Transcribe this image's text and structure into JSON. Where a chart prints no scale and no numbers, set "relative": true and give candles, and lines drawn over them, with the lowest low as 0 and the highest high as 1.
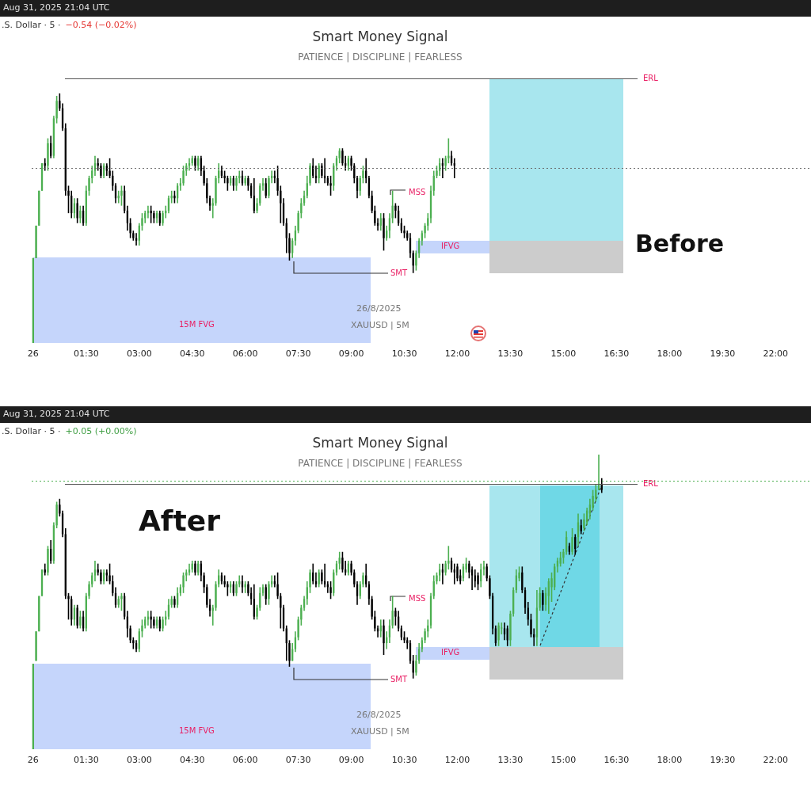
{
  "chart_data": [
    {
      "type": "candlestick",
      "title": "Smart Money Signal",
      "subtitle": "PATIENCE | DISCIPLINE | FEARLESS",
      "relative": true,
      "annotations": [
        "Aug 31, 2025 21:04 UTC",
        ".S. Dollar · 5 ·",
        "−0.54 (−0.02%)",
        "MSS",
        "IFVG",
        "SMT",
        "15M FVG",
        "26/8/2025",
        "XAUUSD | 5M",
        "Before"
      ],
      "ref_lines": [
        {
          "axis": "y",
          "value": 1.06,
          "label": "ERL",
          "color": "#555555"
        },
        {
          "axis": "y",
          "value": 0.7,
          "line_style": "dotted",
          "color": "#666666"
        }
      ],
      "categories": [
        "26",
        null,
        null,
        null,
        null,
        null,
        null,
        null,
        null,
        null,
        null,
        null,
        null,
        null,
        null,
        null,
        null,
        null,
        "01:30",
        null,
        null,
        null,
        null,
        null,
        null,
        null,
        null,
        null,
        null,
        null,
        null,
        null,
        null,
        null,
        null,
        null,
        "03:00",
        null,
        null,
        null,
        null,
        null,
        null,
        null,
        null,
        null,
        null,
        null,
        null,
        null,
        null,
        null,
        null,
        null,
        "04:30",
        null,
        null,
        null,
        null,
        null,
        null,
        null,
        null,
        null,
        null,
        null,
        null,
        null,
        null,
        null,
        null,
        null,
        "06:00",
        null,
        null,
        null,
        null,
        null,
        null,
        null,
        null,
        null,
        null,
        null,
        null,
        null,
        null,
        null,
        null,
        null,
        "07:30",
        null,
        null,
        null,
        null,
        null,
        null,
        null,
        null,
        null,
        null,
        null,
        null,
        null,
        null,
        null,
        null,
        null,
        "09:00",
        null,
        null,
        null,
        null,
        null,
        null,
        null,
        null,
        null,
        null,
        null,
        null,
        null,
        null,
        null,
        null,
        null,
        "10:30",
        null,
        null,
        null,
        null,
        null,
        null,
        null,
        null,
        null,
        null,
        null,
        null,
        null,
        null,
        null,
        null,
        null,
        "12:00",
        null,
        null,
        null,
        null,
        null,
        null,
        null,
        null,
        null,
        null,
        null,
        null,
        null,
        null,
        null,
        null,
        null,
        "13:30",
        null,
        null,
        null,
        null,
        null,
        null,
        null,
        null,
        null,
        null,
        null,
        null,
        null,
        null,
        null,
        null,
        null,
        "15:00",
        null,
        null,
        null,
        null,
        null,
        null,
        null,
        null,
        null,
        null,
        null,
        null,
        null,
        null,
        null,
        null,
        null,
        "16:30",
        null,
        null,
        null,
        null,
        null,
        null,
        null,
        null,
        null,
        null,
        null,
        null,
        null,
        null,
        null,
        null,
        null,
        "18:00",
        null,
        null,
        null,
        null,
        null,
        null,
        null,
        null,
        null,
        null,
        null,
        null,
        null,
        null,
        null,
        null,
        null,
        "19:30",
        null,
        null,
        null,
        null,
        null,
        null,
        null,
        null,
        null,
        null,
        null,
        null,
        null,
        null,
        null,
        null,
        null,
        "22:00",
        null,
        null,
        null,
        null,
        null,
        null,
        null,
        null,
        null,
        null,
        null
      ],
      "ohlc": [
        [
          0,
          0.34,
          0,
          0.34
        ],
        [
          0.34,
          0.47,
          0.34,
          0.47
        ],
        [
          0.47,
          0.61,
          0.47,
          0.61
        ],
        [
          0.61,
          0.72,
          0.61,
          0.72
        ],
        [
          0.72,
          0.74,
          0.69,
          0.71
        ],
        [
          0.71,
          0.82,
          0.69,
          0.8
        ],
        [
          0.8,
          0.83,
          0.74,
          0.75
        ],
        [
          0.75,
          0.91,
          0.74,
          0.9
        ],
        [
          0.9,
          0.99,
          0.88,
          0.97
        ],
        [
          0.97,
          1,
          0.93,
          0.94
        ],
        [
          0.94,
          0.96,
          0.85,
          0.86
        ],
        [
          0.86,
          0.88,
          0.59,
          0.61
        ],
        [
          0.61,
          0.63,
          0.52,
          0.59
        ],
        [
          0.59,
          0.61,
          0.5,
          0.52
        ],
        [
          0.52,
          0.58,
          0.5,
          0.56
        ],
        [
          0.56,
          0.58,
          0.48,
          0.5
        ],
        [
          0.5,
          0.55,
          0.48,
          0.53
        ],
        [
          0.53,
          0.55,
          0.47,
          0.48
        ],
        [
          0.48,
          0.63,
          0.47,
          0.61
        ],
        [
          0.61,
          0.67,
          0.59,
          0.66
        ],
        [
          0.66,
          0.71,
          0.64,
          0.69
        ],
        [
          0.69,
          0.75,
          0.67,
          0.72
        ],
        [
          0.72,
          0.74,
          0.69,
          0.71
        ],
        [
          0.71,
          0.72,
          0.66,
          0.67
        ],
        [
          0.67,
          0.72,
          0.66,
          0.71
        ],
        [
          0.71,
          0.72,
          0.67,
          0.69
        ],
        [
          0.69,
          0.74,
          0.66,
          0.67
        ],
        [
          0.67,
          0.69,
          0.61,
          0.63
        ],
        [
          0.63,
          0.64,
          0.56,
          0.58
        ],
        [
          0.58,
          0.61,
          0.56,
          0.59
        ],
        [
          0.59,
          0.63,
          0.55,
          0.61
        ],
        [
          0.61,
          0.63,
          0.52,
          0.53
        ],
        [
          0.53,
          0.55,
          0.45,
          0.48
        ],
        [
          0.48,
          0.5,
          0.42,
          0.44
        ],
        [
          0.44,
          0.45,
          0.41,
          0.42
        ],
        [
          0.42,
          0.44,
          0.39,
          0.41
        ],
        [
          0.41,
          0.48,
          0.39,
          0.47
        ],
        [
          0.47,
          0.52,
          0.45,
          0.5
        ],
        [
          0.5,
          0.53,
          0.48,
          0.52
        ],
        [
          0.52,
          0.55,
          0.5,
          0.53
        ],
        [
          0.53,
          0.55,
          0.48,
          0.52
        ],
        [
          0.52,
          0.53,
          0.48,
          0.5
        ],
        [
          0.5,
          0.53,
          0.48,
          0.52
        ],
        [
          0.52,
          0.53,
          0.47,
          0.48
        ],
        [
          0.48,
          0.53,
          0.47,
          0.52
        ],
        [
          0.52,
          0.55,
          0.5,
          0.53
        ],
        [
          0.53,
          0.59,
          0.52,
          0.58
        ],
        [
          0.58,
          0.61,
          0.56,
          0.59
        ],
        [
          0.59,
          0.61,
          0.56,
          0.58
        ],
        [
          0.58,
          0.64,
          0.56,
          0.63
        ],
        [
          0.63,
          0.66,
          0.61,
          0.64
        ],
        [
          0.64,
          0.71,
          0.63,
          0.69
        ],
        [
          0.69,
          0.72,
          0.67,
          0.71
        ],
        [
          0.71,
          0.74,
          0.69,
          0.72
        ],
        [
          0.72,
          0.75,
          0.71,
          0.74
        ],
        [
          0.74,
          0.75,
          0.69,
          0.71
        ],
        [
          0.71,
          0.75,
          0.69,
          0.74
        ],
        [
          0.74,
          0.75,
          0.67,
          0.69
        ],
        [
          0.69,
          0.71,
          0.63,
          0.64
        ],
        [
          0.64,
          0.66,
          0.56,
          0.58
        ],
        [
          0.58,
          0.59,
          0.53,
          0.55
        ],
        [
          0.55,
          0.58,
          0.5,
          0.56
        ],
        [
          0.56,
          0.67,
          0.55,
          0.66
        ],
        [
          0.66,
          0.72,
          0.64,
          0.69
        ],
        [
          0.69,
          0.71,
          0.66,
          0.67
        ],
        [
          0.67,
          0.69,
          0.64,
          0.66
        ],
        [
          0.66,
          0.67,
          0.61,
          0.64
        ],
        [
          0.64,
          0.67,
          0.63,
          0.66
        ],
        [
          0.66,
          0.67,
          0.61,
          0.63
        ],
        [
          0.63,
          0.67,
          0.61,
          0.66
        ],
        [
          0.66,
          0.69,
          0.64,
          0.67
        ],
        [
          0.67,
          0.69,
          0.63,
          0.64
        ],
        [
          0.64,
          0.67,
          0.63,
          0.66
        ],
        [
          0.66,
          0.67,
          0.61,
          0.63
        ],
        [
          0.63,
          0.64,
          0.58,
          0.59
        ],
        [
          0.59,
          0.66,
          0.52,
          0.53
        ],
        [
          0.53,
          0.58,
          0.52,
          0.56
        ],
        [
          0.56,
          0.64,
          0.55,
          0.63
        ],
        [
          0.63,
          0.66,
          0.61,
          0.64
        ],
        [
          0.64,
          0.66,
          0.58,
          0.59
        ],
        [
          0.59,
          0.67,
          0.58,
          0.66
        ],
        [
          0.66,
          0.69,
          0.64,
          0.67
        ],
        [
          0.67,
          0.69,
          0.64,
          0.66
        ],
        [
          0.66,
          0.71,
          0.59,
          0.61
        ],
        [
          0.61,
          0.63,
          0.48,
          0.56
        ],
        [
          0.56,
          0.58,
          0.47,
          0.48
        ],
        [
          0.48,
          0.5,
          0.36,
          0.42
        ],
        [
          0.42,
          0.44,
          0.33,
          0.36
        ],
        [
          0.36,
          0.42,
          0.34,
          0.41
        ],
        [
          0.41,
          0.47,
          0.39,
          0.45
        ],
        [
          0.45,
          0.53,
          0.44,
          0.52
        ],
        [
          0.52,
          0.58,
          0.5,
          0.56
        ],
        [
          0.56,
          0.61,
          0.55,
          0.59
        ],
        [
          0.59,
          0.67,
          0.58,
          0.64
        ],
        [
          0.64,
          0.72,
          0.63,
          0.71
        ],
        [
          0.71,
          0.74,
          0.66,
          0.67
        ],
        [
          0.67,
          0.71,
          0.64,
          0.66
        ],
        [
          0.66,
          0.72,
          0.64,
          0.71
        ],
        [
          0.71,
          0.72,
          0.66,
          0.67
        ],
        [
          0.67,
          0.74,
          0.64,
          0.66
        ],
        [
          0.66,
          0.67,
          0.63,
          0.64
        ],
        [
          0.64,
          0.67,
          0.59,
          0.63
        ],
        [
          0.63,
          0.72,
          0.61,
          0.71
        ],
        [
          0.71,
          0.75,
          0.69,
          0.74
        ],
        [
          0.74,
          0.78,
          0.72,
          0.77
        ],
        [
          0.77,
          0.78,
          0.71,
          0.72
        ],
        [
          0.72,
          0.75,
          0.69,
          0.71
        ],
        [
          0.71,
          0.75,
          0.69,
          0.74
        ],
        [
          0.74,
          0.75,
          0.69,
          0.71
        ],
        [
          0.71,
          0.72,
          0.64,
          0.66
        ],
        [
          0.66,
          0.67,
          0.58,
          0.61
        ],
        [
          0.61,
          0.67,
          0.59,
          0.66
        ],
        [
          0.66,
          0.71,
          0.64,
          0.69
        ],
        [
          0.69,
          0.74,
          0.64,
          0.66
        ],
        [
          0.66,
          0.67,
          0.58,
          0.59
        ],
        [
          0.59,
          0.61,
          0.52,
          0.53
        ],
        [
          0.53,
          0.55,
          0.47,
          0.48
        ],
        [
          0.48,
          0.5,
          0.45,
          0.47
        ],
        [
          0.47,
          0.52,
          0.45,
          0.5
        ],
        [
          0.5,
          0.52,
          0.37,
          0.42
        ],
        [
          0.42,
          0.47,
          0.41,
          0.45
        ],
        [
          0.45,
          0.52,
          0.42,
          0.5
        ],
        [
          0.5,
          0.61,
          0.48,
          0.55
        ],
        [
          0.55,
          0.56,
          0.5,
          0.53
        ],
        [
          0.53,
          0.55,
          0.47,
          0.48
        ],
        [
          0.48,
          0.5,
          0.44,
          0.45
        ],
        [
          0.45,
          0.47,
          0.42,
          0.44
        ],
        [
          0.44,
          0.45,
          0.41,
          0.42
        ],
        [
          0.42,
          0.44,
          0.34,
          0.36
        ],
        [
          0.36,
          0.37,
          0.28,
          0.31
        ],
        [
          0.31,
          0.37,
          0.29,
          0.36
        ],
        [
          0.36,
          0.42,
          0.34,
          0.41
        ],
        [
          0.41,
          0.45,
          0.39,
          0.44
        ],
        [
          0.44,
          0.48,
          0.42,
          0.47
        ],
        [
          0.47,
          0.52,
          0.45,
          0.5
        ],
        [
          0.5,
          0.63,
          0.48,
          0.61
        ],
        [
          0.61,
          0.69,
          0.59,
          0.67
        ],
        [
          0.67,
          0.71,
          0.66,
          0.69
        ],
        [
          0.69,
          0.74,
          0.67,
          0.72
        ],
        [
          0.72,
          0.74,
          0.66,
          0.71
        ],
        [
          0.71,
          0.75,
          0.69,
          0.74
        ],
        [
          0.74,
          0.82,
          0.72,
          0.75
        ],
        [
          0.75,
          0.77,
          0.71,
          0.72
        ],
        [
          0.72,
          0.74,
          0.66,
          0.71
        ],
        null,
        null,
        null,
        null,
        null,
        null,
        null,
        null,
        null,
        null,
        null,
        null,
        null,
        null,
        null,
        null,
        null,
        null,
        null,
        null,
        null,
        null,
        null,
        null,
        null,
        null,
        null,
        null,
        null,
        null,
        null,
        null,
        null,
        null,
        null,
        null,
        null,
        null,
        null,
        null,
        null,
        null,
        null,
        null,
        null,
        null,
        null,
        null,
        null,
        null,
        null,
        null,
        null,
        null,
        null,
        null,
        null,
        null,
        null,
        null,
        null,
        null,
        null,
        null,
        null,
        null,
        null,
        null,
        null,
        null,
        null,
        null,
        null,
        null,
        null,
        null,
        null,
        null,
        null,
        null,
        null,
        null,
        null,
        null,
        null,
        null,
        null,
        null,
        null,
        null,
        null,
        null,
        null,
        null,
        null,
        null,
        null,
        null,
        null,
        null,
        null,
        null,
        null,
        null,
        null,
        null,
        null,
        null,
        null,
        null,
        null,
        null,
        null,
        null,
        null,
        null,
        null,
        null,
        null,
        null
      ]
    },
    {
      "type": "candlestick",
      "title": "Smart Money Signal",
      "subtitle": "PATIENCE | DISCIPLINE | FEARLESS",
      "relative": true,
      "annotations": [
        "Aug 31, 2025 21:04 UTC",
        ".S. Dollar · 5 ·",
        "+0.05 (+0.00%)",
        "MSS",
        "IFVG",
        "SMT",
        "15M FVG",
        "26/8/2025",
        "XAUUSD | 5M",
        "After"
      ],
      "ref_lines": [
        {
          "axis": "y",
          "value": 0.9,
          "label": "ERL",
          "color": "#555555"
        },
        {
          "axis": "y",
          "value": 0.91,
          "line_style": "dotted",
          "color": "#4caf50"
        }
      ],
      "categories": [
        "26",
        null,
        null,
        null,
        null,
        null,
        null,
        null,
        null,
        null,
        null,
        null,
        null,
        null,
        null,
        null,
        null,
        null,
        "01:30",
        null,
        null,
        null,
        null,
        null,
        null,
        null,
        null,
        null,
        null,
        null,
        null,
        null,
        null,
        null,
        null,
        null,
        "03:00",
        null,
        null,
        null,
        null,
        null,
        null,
        null,
        null,
        null,
        null,
        null,
        null,
        null,
        null,
        null,
        null,
        null,
        "04:30",
        null,
        null,
        null,
        null,
        null,
        null,
        null,
        null,
        null,
        null,
        null,
        null,
        null,
        null,
        null,
        null,
        null,
        "06:00",
        null,
        null,
        null,
        null,
        null,
        null,
        null,
        null,
        null,
        null,
        null,
        null,
        null,
        null,
        null,
        null,
        null,
        "07:30",
        null,
        null,
        null,
        null,
        null,
        null,
        null,
        null,
        null,
        null,
        null,
        null,
        null,
        null,
        null,
        null,
        null,
        "09:00",
        null,
        null,
        null,
        null,
        null,
        null,
        null,
        null,
        null,
        null,
        null,
        null,
        null,
        null,
        null,
        null,
        null,
        "10:30",
        null,
        null,
        null,
        null,
        null,
        null,
        null,
        null,
        null,
        null,
        null,
        null,
        null,
        null,
        null,
        null,
        null,
        "12:00",
        null,
        null,
        null,
        null,
        null,
        null,
        null,
        null,
        null,
        null,
        null,
        null,
        null,
        null,
        null,
        null,
        null,
        "13:30",
        null,
        null,
        null,
        null,
        null,
        null,
        null,
        null,
        null,
        null,
        null,
        null,
        null,
        null,
        null,
        null,
        null,
        "15:00",
        null,
        null,
        null,
        null,
        null,
        null,
        null,
        null,
        null,
        null,
        null,
        null,
        null,
        null,
        null,
        null,
        null,
        "16:30",
        null,
        null,
        null,
        null,
        null,
        null,
        null,
        null,
        null,
        null,
        null,
        null,
        null,
        null,
        null,
        null,
        null,
        "18:00",
        null,
        null,
        null,
        null,
        null,
        null,
        null,
        null,
        null,
        null,
        null,
        null,
        null,
        null,
        null,
        null,
        null,
        "19:30",
        null,
        null,
        null,
        null,
        null,
        null,
        null,
        null,
        null,
        null,
        null,
        null,
        null,
        null,
        null,
        null,
        null,
        "22:00",
        null,
        null,
        null,
        null,
        null,
        null,
        null,
        null,
        null,
        null,
        null
      ],
      "ohlc": [
        [
          0,
          0.29,
          0,
          0.29
        ],
        [
          0.3,
          0.4,
          0.3,
          0.4
        ],
        [
          0.4,
          0.52,
          0.4,
          0.52
        ],
        [
          0.52,
          0.61,
          0.52,
          0.61
        ],
        [
          0.61,
          0.63,
          0.59,
          0.6
        ],
        [
          0.6,
          0.69,
          0.59,
          0.68
        ],
        [
          0.68,
          0.71,
          0.63,
          0.64
        ],
        [
          0.64,
          0.77,
          0.63,
          0.76
        ],
        [
          0.76,
          0.84,
          0.75,
          0.83
        ],
        [
          0.83,
          0.85,
          0.79,
          0.8
        ],
        [
          0.8,
          0.81,
          0.72,
          0.73
        ],
        [
          0.73,
          0.75,
          0.51,
          0.52
        ],
        [
          0.52,
          0.53,
          0.44,
          0.51
        ],
        [
          0.51,
          0.52,
          0.42,
          0.44
        ],
        [
          0.44,
          0.49,
          0.42,
          0.48
        ],
        [
          0.48,
          0.49,
          0.41,
          0.42
        ],
        [
          0.42,
          0.47,
          0.41,
          0.45
        ],
        [
          0.45,
          0.47,
          0.4,
          0.41
        ],
        [
          0.41,
          0.53,
          0.4,
          0.52
        ],
        [
          0.52,
          0.57,
          0.51,
          0.56
        ],
        [
          0.56,
          0.6,
          0.55,
          0.59
        ],
        [
          0.59,
          0.64,
          0.57,
          0.61
        ],
        [
          0.61,
          0.63,
          0.59,
          0.6
        ],
        [
          0.6,
          0.61,
          0.56,
          0.57
        ],
        [
          0.57,
          0.61,
          0.56,
          0.6
        ],
        [
          0.6,
          0.61,
          0.57,
          0.59
        ],
        [
          0.59,
          0.63,
          0.56,
          0.57
        ],
        [
          0.57,
          0.59,
          0.52,
          0.53
        ],
        [
          0.53,
          0.55,
          0.48,
          0.49
        ],
        [
          0.49,
          0.52,
          0.48,
          0.51
        ],
        [
          0.51,
          0.53,
          0.47,
          0.52
        ],
        [
          0.52,
          0.53,
          0.44,
          0.45
        ],
        [
          0.45,
          0.47,
          0.38,
          0.41
        ],
        [
          0.41,
          0.42,
          0.36,
          0.37
        ],
        [
          0.37,
          0.38,
          0.34,
          0.36
        ],
        [
          0.36,
          0.37,
          0.33,
          0.34
        ],
        [
          0.34,
          0.41,
          0.33,
          0.4
        ],
        [
          0.4,
          0.44,
          0.38,
          0.42
        ],
        [
          0.42,
          0.45,
          0.41,
          0.44
        ],
        [
          0.44,
          0.47,
          0.42,
          0.45
        ],
        [
          0.45,
          0.47,
          0.41,
          0.44
        ],
        [
          0.44,
          0.45,
          0.41,
          0.42
        ],
        [
          0.42,
          0.45,
          0.41,
          0.44
        ],
        [
          0.44,
          0.45,
          0.4,
          0.41
        ],
        [
          0.41,
          0.45,
          0.4,
          0.44
        ],
        [
          0.44,
          0.47,
          0.42,
          0.45
        ],
        [
          0.45,
          0.51,
          0.44,
          0.49
        ],
        [
          0.49,
          0.52,
          0.48,
          0.51
        ],
        [
          0.51,
          0.52,
          0.48,
          0.49
        ],
        [
          0.49,
          0.55,
          0.48,
          0.53
        ],
        [
          0.53,
          0.56,
          0.52,
          0.55
        ],
        [
          0.55,
          0.6,
          0.53,
          0.59
        ],
        [
          0.59,
          0.61,
          0.57,
          0.6
        ],
        [
          0.6,
          0.63,
          0.59,
          0.61
        ],
        [
          0.61,
          0.64,
          0.6,
          0.63
        ],
        [
          0.63,
          0.64,
          0.59,
          0.6
        ],
        [
          0.6,
          0.64,
          0.59,
          0.63
        ],
        [
          0.63,
          0.64,
          0.57,
          0.59
        ],
        [
          0.59,
          0.6,
          0.53,
          0.55
        ],
        [
          0.55,
          0.56,
          0.48,
          0.49
        ],
        [
          0.49,
          0.51,
          0.45,
          0.47
        ],
        [
          0.47,
          0.49,
          0.42,
          0.48
        ],
        [
          0.48,
          0.57,
          0.47,
          0.56
        ],
        [
          0.56,
          0.61,
          0.55,
          0.59
        ],
        [
          0.59,
          0.6,
          0.56,
          0.57
        ],
        [
          0.57,
          0.59,
          0.55,
          0.56
        ],
        [
          0.56,
          0.57,
          0.52,
          0.55
        ],
        [
          0.55,
          0.57,
          0.53,
          0.56
        ],
        [
          0.56,
          0.57,
          0.52,
          0.53
        ],
        [
          0.53,
          0.57,
          0.52,
          0.56
        ],
        [
          0.56,
          0.59,
          0.55,
          0.57
        ],
        [
          0.57,
          0.59,
          0.53,
          0.55
        ],
        [
          0.55,
          0.57,
          0.53,
          0.56
        ],
        [
          0.56,
          0.57,
          0.52,
          0.53
        ],
        [
          0.53,
          0.55,
          0.49,
          0.51
        ],
        [
          0.51,
          0.56,
          0.44,
          0.45
        ],
        [
          0.45,
          0.49,
          0.44,
          0.48
        ],
        [
          0.48,
          0.55,
          0.47,
          0.53
        ],
        [
          0.53,
          0.56,
          0.52,
          0.55
        ],
        [
          0.55,
          0.56,
          0.49,
          0.51
        ],
        [
          0.51,
          0.57,
          0.49,
          0.56
        ],
        [
          0.56,
          0.59,
          0.55,
          0.57
        ],
        [
          0.57,
          0.59,
          0.55,
          0.56
        ],
        [
          0.56,
          0.6,
          0.51,
          0.52
        ],
        [
          0.52,
          0.53,
          0.41,
          0.48
        ],
        [
          0.48,
          0.49,
          0.4,
          0.41
        ],
        [
          0.41,
          0.42,
          0.3,
          0.36
        ],
        [
          0.36,
          0.37,
          0.28,
          0.3
        ],
        [
          0.3,
          0.36,
          0.3,
          0.34
        ],
        [
          0.34,
          0.4,
          0.33,
          0.38
        ],
        [
          0.38,
          0.45,
          0.37,
          0.44
        ],
        [
          0.44,
          0.49,
          0.42,
          0.48
        ],
        [
          0.48,
          0.52,
          0.47,
          0.51
        ],
        [
          0.51,
          0.57,
          0.49,
          0.55
        ],
        [
          0.55,
          0.61,
          0.53,
          0.6
        ],
        [
          0.6,
          0.63,
          0.56,
          0.57
        ],
        [
          0.57,
          0.6,
          0.55,
          0.56
        ],
        [
          0.56,
          0.61,
          0.55,
          0.6
        ],
        [
          0.6,
          0.61,
          0.56,
          0.57
        ],
        [
          0.57,
          0.63,
          0.55,
          0.56
        ],
        [
          0.56,
          0.57,
          0.53,
          0.55
        ],
        [
          0.55,
          0.57,
          0.51,
          0.53
        ],
        [
          0.53,
          0.61,
          0.52,
          0.6
        ],
        [
          0.6,
          0.64,
          0.59,
          0.63
        ],
        [
          0.63,
          0.67,
          0.61,
          0.65
        ],
        [
          0.65,
          0.67,
          0.6,
          0.61
        ],
        [
          0.61,
          0.64,
          0.59,
          0.6
        ],
        [
          0.6,
          0.64,
          0.59,
          0.63
        ],
        [
          0.63,
          0.64,
          0.59,
          0.6
        ],
        [
          0.6,
          0.61,
          0.55,
          0.56
        ],
        [
          0.56,
          0.57,
          0.49,
          0.52
        ],
        [
          0.52,
          0.57,
          0.51,
          0.56
        ],
        [
          0.56,
          0.6,
          0.55,
          0.59
        ],
        [
          0.59,
          0.63,
          0.55,
          0.56
        ],
        [
          0.56,
          0.57,
          0.49,
          0.51
        ],
        [
          0.51,
          0.52,
          0.44,
          0.45
        ],
        [
          0.45,
          0.47,
          0.4,
          0.41
        ],
        [
          0.41,
          0.42,
          0.38,
          0.4
        ],
        [
          0.4,
          0.44,
          0.38,
          0.42
        ],
        [
          0.42,
          0.44,
          0.32,
          0.36
        ],
        [
          0.36,
          0.4,
          0.34,
          0.38
        ],
        [
          0.38,
          0.44,
          0.36,
          0.42
        ],
        [
          0.42,
          0.52,
          0.41,
          0.47
        ],
        [
          0.47,
          0.48,
          0.42,
          0.45
        ],
        [
          0.45,
          0.47,
          0.4,
          0.41
        ],
        [
          0.41,
          0.42,
          0.37,
          0.38
        ],
        [
          0.38,
          0.4,
          0.36,
          0.37
        ],
        [
          0.37,
          0.38,
          0.34,
          0.36
        ],
        [
          0.36,
          0.37,
          0.29,
          0.3
        ],
        [
          0.3,
          0.32,
          0.24,
          0.26
        ],
        [
          0.26,
          0.32,
          0.25,
          0.3
        ],
        [
          0.3,
          0.36,
          0.29,
          0.34
        ],
        [
          0.34,
          0.38,
          0.33,
          0.37
        ],
        [
          0.37,
          0.41,
          0.36,
          0.4
        ],
        [
          0.4,
          0.44,
          0.38,
          0.42
        ],
        [
          0.42,
          0.53,
          0.41,
          0.52
        ],
        [
          0.52,
          0.59,
          0.51,
          0.57
        ],
        [
          0.57,
          0.6,
          0.56,
          0.59
        ],
        [
          0.59,
          0.63,
          0.57,
          0.61
        ],
        [
          0.61,
          0.63,
          0.56,
          0.6
        ],
        [
          0.6,
          0.64,
          0.59,
          0.63
        ],
        [
          0.63,
          0.69,
          0.61,
          0.64
        ],
        [
          0.64,
          0.65,
          0.6,
          0.61
        ],
        [
          0.61,
          0.63,
          0.56,
          0.6
        ],
        [
          0.62,
          0.63,
          0.57,
          0.58
        ],
        [
          0.59,
          0.61,
          0.56,
          0.57
        ],
        [
          0.58,
          0.63,
          0.57,
          0.62
        ],
        [
          0.61,
          0.65,
          0.6,
          0.63
        ],
        [
          0.63,
          0.64,
          0.58,
          0.6
        ],
        [
          0.61,
          0.62,
          0.54,
          0.59
        ],
        [
          0.59,
          0.61,
          0.55,
          0.57
        ],
        [
          0.59,
          0.6,
          0.54,
          0.56
        ],
        [
          0.57,
          0.63,
          0.55,
          0.61
        ],
        [
          0.61,
          0.64,
          0.59,
          0.62
        ],
        [
          0.62,
          0.63,
          0.57,
          0.58
        ],
        [
          0.58,
          0.59,
          0.51,
          0.52
        ],
        [
          0.52,
          0.53,
          0.39,
          0.41
        ],
        [
          0.41,
          0.42,
          0.35,
          0.36
        ],
        [
          0.37,
          0.43,
          0.35,
          0.42
        ],
        [
          0.41,
          0.43,
          0.39,
          0.41
        ],
        [
          0.41,
          0.43,
          0.37,
          0.39
        ],
        [
          0.41,
          0.42,
          0.35,
          0.37
        ],
        [
          0.37,
          0.47,
          0.35,
          0.46
        ],
        [
          0.46,
          0.55,
          0.45,
          0.54
        ],
        [
          0.54,
          0.61,
          0.53,
          0.59
        ],
        [
          0.58,
          0.62,
          0.57,
          0.6
        ],
        [
          0.6,
          0.62,
          0.53,
          0.54
        ],
        [
          0.54,
          0.55,
          0.46,
          0.48
        ],
        [
          0.48,
          0.5,
          0.42,
          0.44
        ],
        [
          0.44,
          0.46,
          0.38,
          0.39
        ],
        [
          0.39,
          0.41,
          0.35,
          0.38
        ],
        [
          0.38,
          0.54,
          0.35,
          0.48
        ],
        [
          0.48,
          0.55,
          0.47,
          0.53
        ],
        [
          0.53,
          0.54,
          0.47,
          0.49
        ],
        [
          0.49,
          0.55,
          0.47,
          0.53
        ],
        [
          0.52,
          0.58,
          0.46,
          0.57
        ],
        [
          0.55,
          0.6,
          0.5,
          0.58
        ],
        [
          0.55,
          0.63,
          0.54,
          0.62
        ],
        [
          0.62,
          0.65,
          0.6,
          0.64
        ],
        [
          0.63,
          0.67,
          0.62,
          0.65
        ],
        [
          0.65,
          0.68,
          0.63,
          0.67
        ],
        [
          0.67,
          0.74,
          0.66,
          0.72
        ],
        [
          0.69,
          0.7,
          0.66,
          0.67
        ],
        [
          0.67,
          0.75,
          0.66,
          0.72
        ],
        [
          0.72,
          0.73,
          0.66,
          0.68
        ],
        [
          0.72,
          0.8,
          0.69,
          0.77
        ],
        [
          0.76,
          0.78,
          0.73,
          0.74
        ],
        [
          0.75,
          0.8,
          0.74,
          0.78
        ],
        [
          0.77,
          0.82,
          0.76,
          0.81
        ],
        [
          0.8,
          0.85,
          0.78,
          0.83
        ],
        [
          0.82,
          0.88,
          0.81,
          0.86
        ],
        [
          0.85,
          0.9,
          0.84,
          0.88
        ],
        [
          0.88,
          1,
          0.88,
          0.9
        ],
        [
          0.9,
          0.92,
          0.87,
          0.88
        ],
        null,
        null,
        null,
        null,
        null,
        null,
        null,
        null,
        null,
        null,
        null,
        null,
        null,
        null,
        null,
        null,
        null,
        null,
        null,
        null,
        null,
        null,
        null,
        null,
        null,
        null,
        null,
        null,
        null,
        null,
        null,
        null,
        null,
        null,
        null,
        null,
        null,
        null,
        null,
        null,
        null,
        null,
        null,
        null,
        null,
        null,
        null,
        null,
        null,
        null,
        null,
        null,
        null,
        null,
        null,
        null,
        null,
        null,
        null,
        null,
        null,
        null,
        null,
        null,
        null,
        null,
        null,
        null,
        null,
        null
      ]
    }
  ]
}
